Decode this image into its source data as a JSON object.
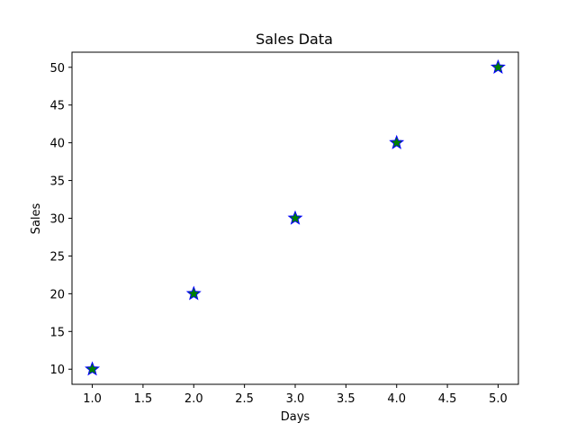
{
  "chart_data": {
    "type": "scatter",
    "title": "Sales Data",
    "xlabel": "Days",
    "ylabel": "Sales",
    "x": [
      1,
      2,
      3,
      4,
      5
    ],
    "y": [
      10,
      20,
      30,
      40,
      50
    ],
    "xlim": [
      0.8,
      5.2
    ],
    "ylim": [
      8,
      52
    ],
    "xticks": [
      "1.0",
      "1.5",
      "2.0",
      "2.5",
      "3.0",
      "3.5",
      "4.0",
      "4.5",
      "5.0"
    ],
    "xtick_values": [
      1.0,
      1.5,
      2.0,
      2.5,
      3.0,
      3.5,
      4.0,
      4.5,
      5.0
    ],
    "yticks": [
      "10",
      "15",
      "20",
      "25",
      "30",
      "35",
      "40",
      "45",
      "50"
    ],
    "ytick_values": [
      10,
      15,
      20,
      25,
      30,
      35,
      40,
      45,
      50
    ],
    "marker": "star",
    "marker_fill": "#008000",
    "marker_edge": "#0000ff",
    "grid": false,
    "legend": "none"
  }
}
